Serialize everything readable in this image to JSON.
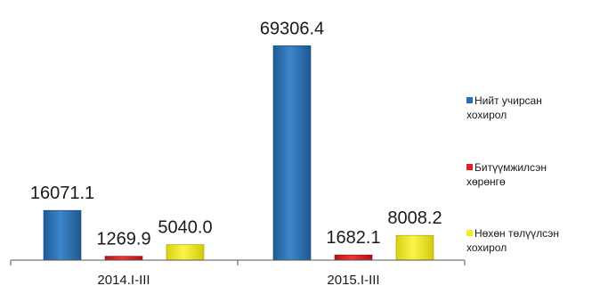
{
  "chart_data": {
    "type": "bar",
    "title": "",
    "xlabel": "",
    "ylabel": "",
    "categories": [
      "2014.I-III",
      "2015.I-III"
    ],
    "ylim": [
      0,
      72000
    ],
    "grid": false,
    "legend_position": "right",
    "series": [
      {
        "name": "Нийт учирсан хохирол",
        "color": "#2a6fb3",
        "values": [
          16071.1,
          69306.4
        ],
        "labels": [
          "16071.1",
          "69306.4"
        ]
      },
      {
        "name": "Битүүмжилсэн хөрөнгө",
        "color": "#e02020",
        "values": [
          1269.9,
          1682.1
        ],
        "labels": [
          "1269.9",
          "1682.1"
        ]
      },
      {
        "name": "Нөхөн төлүүлсэн хохирол",
        "color": "#f2ee1a",
        "values": [
          5040.0,
          8008.2
        ],
        "labels": [
          "5040.0",
          "8008.2"
        ]
      }
    ]
  },
  "legend": {
    "items": [
      {
        "line1": "Нийт учирсан",
        "line2": "хохирол",
        "color": "#2a6fb3"
      },
      {
        "line1": "Битүүмжилсэн",
        "line2": "хөрөнгө",
        "color": "#e02020"
      },
      {
        "line1": "Нөхөн төлүүлсэн",
        "line2": "хохирол",
        "color": "#f2ee1a"
      }
    ]
  }
}
